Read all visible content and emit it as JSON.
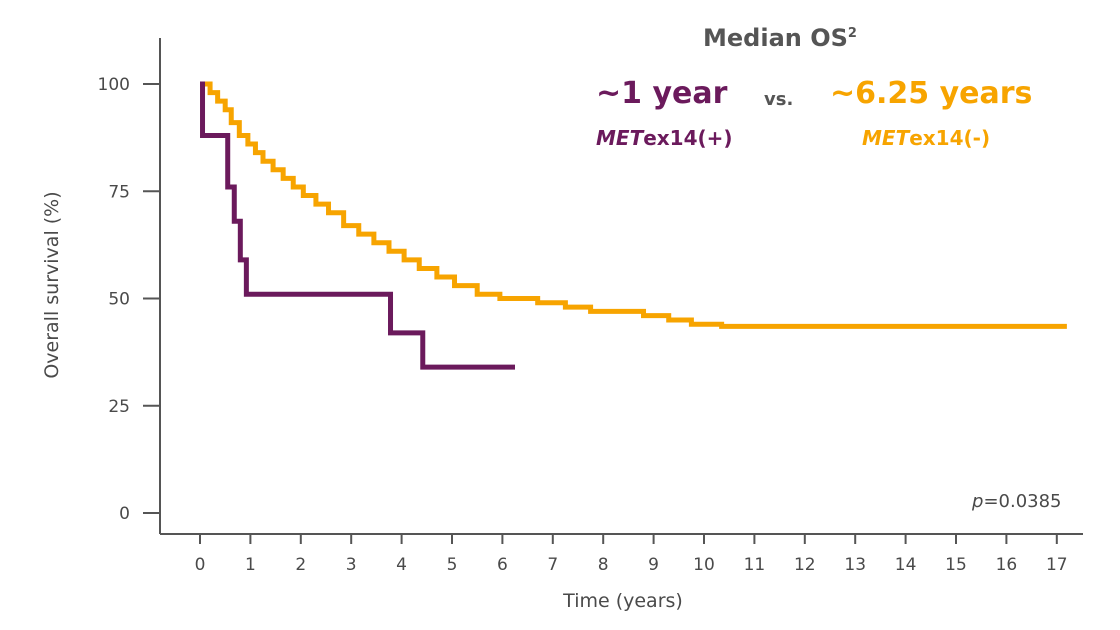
{
  "chart_data": {
    "type": "line",
    "subtype": "kaplan-meier step",
    "xlabel": "Time (years)",
    "ylabel": "Overall survival (%)",
    "xlim": [
      0,
      17
    ],
    "ylim": [
      0,
      100
    ],
    "x_ticks": [
      0,
      1,
      2,
      3,
      4,
      5,
      6,
      7,
      8,
      9,
      10,
      11,
      12,
      13,
      14,
      15,
      16,
      17
    ],
    "x_tick_labels": [
      "0",
      "1",
      "2",
      "3",
      "4",
      "5",
      "6",
      "7",
      "8",
      "9",
      "10",
      "11",
      "12",
      "13",
      "14",
      "15",
      "16",
      "17"
    ],
    "y_ticks": [
      0,
      25,
      50,
      75,
      100
    ],
    "y_tick_labels": [
      "0",
      "25",
      "50",
      "75",
      "100"
    ],
    "grid": false,
    "series": [
      {
        "name": "METex14(+)",
        "color": "#6b1a5c",
        "points": [
          [
            0,
            100
          ],
          [
            0.05,
            88
          ],
          [
            0.55,
            76
          ],
          [
            0.68,
            68
          ],
          [
            0.8,
            59
          ],
          [
            0.92,
            51
          ],
          [
            3.78,
            42
          ],
          [
            4.42,
            34
          ],
          [
            6.25,
            34
          ]
        ]
      },
      {
        "name": "METex14(-)",
        "color": "#f7a400",
        "points": [
          [
            0,
            100
          ],
          [
            0.2,
            98
          ],
          [
            0.35,
            96
          ],
          [
            0.5,
            94
          ],
          [
            0.62,
            91
          ],
          [
            0.78,
            88
          ],
          [
            0.95,
            86
          ],
          [
            1.1,
            84
          ],
          [
            1.25,
            82
          ],
          [
            1.45,
            80
          ],
          [
            1.65,
            78
          ],
          [
            1.85,
            76
          ],
          [
            2.05,
            74
          ],
          [
            2.3,
            72
          ],
          [
            2.55,
            70
          ],
          [
            2.85,
            67
          ],
          [
            3.15,
            65
          ],
          [
            3.45,
            63
          ],
          [
            3.75,
            61
          ],
          [
            4.05,
            59
          ],
          [
            4.35,
            57
          ],
          [
            4.7,
            55
          ],
          [
            5.05,
            53
          ],
          [
            5.5,
            51
          ],
          [
            5.95,
            50
          ],
          [
            6.7,
            49
          ],
          [
            7.25,
            48
          ],
          [
            7.75,
            47
          ],
          [
            8.8,
            46
          ],
          [
            9.3,
            45
          ],
          [
            9.75,
            44
          ],
          [
            10.35,
            43.5
          ],
          [
            17.2,
            43.5
          ]
        ]
      }
    ],
    "annotations": {
      "title": "Median OS",
      "title_sup": "2",
      "pos_median": "~1 year",
      "vs": "vs.",
      "neg_median": "~6.25 years",
      "pos_label_italic": "MET",
      "pos_label_rest": "ex14(+)",
      "neg_label_italic": "MET",
      "neg_label_rest": "ex14(-)",
      "pvalue_italic": "p",
      "pvalue_rest": "=0.0385"
    }
  }
}
